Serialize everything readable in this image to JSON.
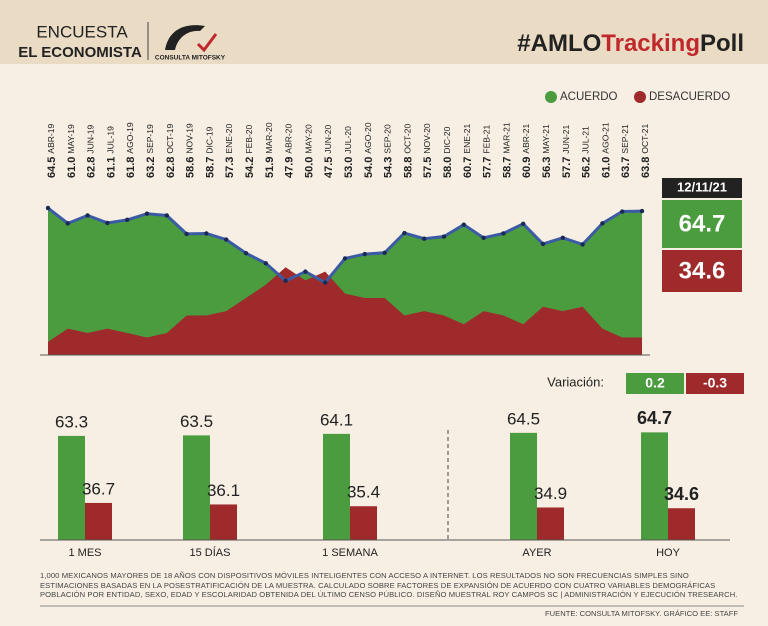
{
  "header": {
    "line1": "ENCUESTA",
    "line2": "EL ECONOMISTA",
    "logo": "CONSULTA MITOFSKY",
    "hashtag": [
      "#AMLO",
      "Tracking",
      "Poll"
    ]
  },
  "chart_data": [
    {
      "type": "line",
      "categories": [
        "ABR-19",
        "MAY-19",
        "JUN-19",
        "JUL-19",
        "AGO-19",
        "SEP-19",
        "OCT-19",
        "NOV-19",
        "DIC-19",
        "ENE-20",
        "FEB-20",
        "MAR-20",
        "ABR-20",
        "MAY-20",
        "JUN-20",
        "JUL-20",
        "AGO-20",
        "SEP-20",
        "OCT-20",
        "NOV-20",
        "DIC-20",
        "ENE-21",
        "FEB-21",
        "MAR-21",
        "ABR-21",
        "MAY-21",
        "JUN-21",
        "JUL-21",
        "AGO-21",
        "SEP-21",
        "OCT-21"
      ],
      "series": [
        {
          "name": "ACUERDO",
          "color": "#4b9b3f",
          "line_color": "#3b5ba5",
          "values": [
            64.5,
            61.0,
            62.8,
            61.1,
            61.8,
            63.2,
            62.8,
            58.6,
            58.7,
            57.3,
            54.2,
            51.9,
            47.9,
            50.0,
            47.5,
            53.0,
            54.0,
            54.3,
            58.8,
            57.5,
            58.0,
            60.7,
            57.7,
            58.7,
            60.9,
            56.3,
            57.7,
            56.2,
            61.0,
            63.7,
            63.8
          ],
          "value_labels": [
            "64.5",
            "61.0",
            "62.8",
            "61.1",
            "61.8",
            "63.2",
            "62.8",
            "58.6",
            "58.7",
            "57.3",
            "54.2",
            "51.9",
            "47.9",
            "50.0",
            "47.5",
            "53.0",
            "54.0",
            "54.3",
            "58.8",
            "57.5",
            "58.0",
            "60.7",
            "57.7",
            "58.7",
            "60.9",
            "56.3",
            "57.7",
            "56.2",
            "61.0",
            "63.7",
            "63.8"
          ]
        },
        {
          "name": "DESACUERDO",
          "color": "#9e2a2b",
          "values": [
            34,
            37,
            36,
            37,
            36,
            35,
            36,
            40,
            40,
            41,
            44,
            47,
            51,
            48,
            50,
            45,
            44,
            44,
            40,
            41,
            40,
            38,
            41,
            40,
            38,
            42,
            41,
            42,
            37,
            35,
            35
          ]
        }
      ],
      "ylim": [
        31,
        80
      ]
    },
    {
      "type": "bar",
      "categories": [
        "1 MES",
        "15 DÍAS",
        "1 SEMANA",
        "AYER",
        "HOY"
      ],
      "series": [
        {
          "name": "ACUERDO",
          "color": "#4b9b3f",
          "values": [
            63.3,
            63.5,
            64.1,
            64.5,
            64.7
          ]
        },
        {
          "name": "DESACUERDO",
          "color": "#9e2a2b",
          "values": [
            36.7,
            36.1,
            35.4,
            34.9,
            34.6
          ]
        }
      ],
      "ylim": [
        22,
        70
      ]
    }
  ],
  "latest": {
    "date": "12/11/21",
    "acuerdo": 64.7,
    "desacuerdo": 34.6
  },
  "variacion": {
    "label": "Variación:",
    "acuerdo": 0.2,
    "desacuerdo": -0.3
  },
  "footnote": "1,000 MEXICANOS MAYORES DE 18 AÑOS CON DISPOSITIVOS MÓVILES INTELIGENTES CON ACCESO A INTERNET. LOS RESULTADOS NO SON FRECUENCIAS SIMPLES SINO ESTIMACIONES BASADAS EN LA POSESTRATIFICACIÓN DE LA MUESTRA. CALCULADO SOBRE FACTORES DE EXPANSIÓN DE ACUERDO CON CUATRO VARIABLES DEMOGRÁFICAS POBLACIÓN POR ENTIDAD, SEXO, EDAD Y ESCOLARIDAD OBTENIDA DEL ÚLTIMO CENSO PÚBLICO. DISEÑO MUESTRAL ROY CAMPOS SC | ADMINISTRACIÓN Y EJECUCIÓN TRESEARCH.",
  "source": "FUENTE: CONSULTA MITOFSKY. GRÁFICO EE: STAFF"
}
